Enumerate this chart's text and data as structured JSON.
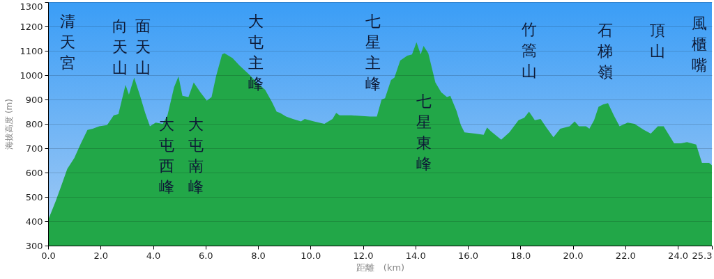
{
  "chart_data": {
    "type": "area",
    "xlabel": "距離　(km)",
    "ylabel": "海拔高度 (m)",
    "x": [
      0,
      0.28,
      0.5,
      0.73,
      1.0,
      1.25,
      1.5,
      1.7,
      1.95,
      2.25,
      2.5,
      2.68,
      2.95,
      3.08,
      3.28,
      3.52,
      3.7,
      3.88,
      4.1,
      4.37,
      4.55,
      4.8,
      4.97,
      5.12,
      5.35,
      5.55,
      5.8,
      6.05,
      6.23,
      6.4,
      6.63,
      6.72,
      7.03,
      7.29,
      7.64,
      8.0,
      8.27,
      8.53,
      8.71,
      8.84,
      9.07,
      9.33,
      9.64,
      9.78,
      10.13,
      10.53,
      10.84,
      10.98,
      11.11,
      11.56,
      12.27,
      12.53,
      12.71,
      12.84,
      13.07,
      13.2,
      13.42,
      13.69,
      13.87,
      14.04,
      14.2,
      14.31,
      14.49,
      14.76,
      14.98,
      15.2,
      15.33,
      15.56,
      15.73,
      15.87,
      16.27,
      16.6,
      16.73,
      16.87,
      17.27,
      17.58,
      17.93,
      18.15,
      18.33,
      18.55,
      18.77,
      18.99,
      19.26,
      19.52,
      19.88,
      20.07,
      20.23,
      20.5,
      20.63,
      20.81,
      20.98,
      21.16,
      21.34,
      21.56,
      21.78,
      22.09,
      22.35,
      22.71,
      22.97,
      23.24,
      23.46,
      23.86,
      24.12,
      24.35,
      24.7,
      24.92,
      25.19,
      25.3
    ],
    "series": [
      {
        "color": "#22a748",
        "values": [
          405,
          480,
          545,
          615,
          660,
          720,
          775,
          780,
          790,
          795,
          835,
          840,
          960,
          920,
          990,
          910,
          845,
          790,
          805,
          800,
          835,
          950,
          995,
          915,
          910,
          970,
          930,
          895,
          910,
          995,
          1085,
          1090,
          1070,
          1040,
          1005,
          965,
          940,
          890,
          850,
          845,
          830,
          820,
          810,
          820,
          810,
          800,
          820,
          845,
          835,
          835,
          830,
          830,
          900,
          905,
          980,
          990,
          1060,
          1080,
          1085,
          1135,
          1085,
          1120,
          1090,
          970,
          930,
          910,
          915,
          855,
          795,
          765,
          760,
          755,
          785,
          770,
          735,
          765,
          815,
          825,
          850,
          815,
          820,
          785,
          745,
          780,
          790,
          810,
          790,
          790,
          780,
          815,
          870,
          880,
          885,
          835,
          790,
          805,
          800,
          775,
          760,
          790,
          790,
          720,
          720,
          725,
          715,
          640,
          640,
          630
        ]
      }
    ],
    "xlim": [
      0,
      25.3
    ],
    "xticks": [
      {
        "value": 0,
        "label": "0.0"
      },
      {
        "value": 2,
        "label": "2.0"
      },
      {
        "value": 4,
        "label": "4.0"
      },
      {
        "value": 6,
        "label": "6.0"
      },
      {
        "value": 8,
        "label": "8.0"
      },
      {
        "value": 10,
        "label": "10.0"
      },
      {
        "value": 12,
        "label": "12.0"
      },
      {
        "value": 14,
        "label": "14.0"
      },
      {
        "value": 16,
        "label": "16.0"
      },
      {
        "value": 18,
        "label": "18.0"
      },
      {
        "value": 20,
        "label": "20.0"
      },
      {
        "value": 22,
        "label": "22.0"
      },
      {
        "value": 24,
        "label": "24.0"
      },
      25.3
    ],
    "ylim": [
      300,
      1300
    ],
    "yticks": [
      300,
      400,
      500,
      600,
      700,
      800,
      900,
      1000,
      1100,
      1200,
      1300
    ],
    "grid": "y",
    "annotations": [
      "清天宮",
      "向天山",
      "面天山",
      "大屯西峰",
      "大屯南峰",
      "大屯主峰",
      "七星主峰",
      "七星東峰",
      "竹篙山",
      "石梯嶺",
      "頂山",
      "風櫃嘴"
    ]
  }
}
